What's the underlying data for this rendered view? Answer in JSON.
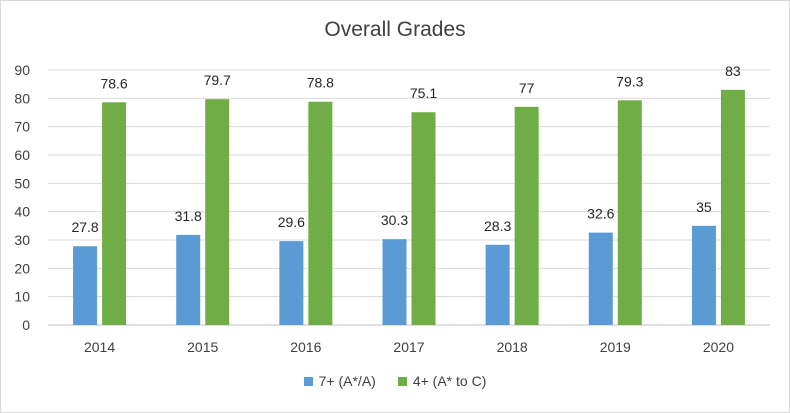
{
  "chart_data": {
    "type": "bar",
    "title": "Overall Grades",
    "categories": [
      "2014",
      "2015",
      "2016",
      "2017",
      "2018",
      "2019",
      "2020"
    ],
    "series": [
      {
        "name": "7+ (A*/A)",
        "color": "#5b9bd5",
        "values": [
          27.8,
          31.8,
          29.6,
          30.3,
          28.3,
          32.6,
          35
        ]
      },
      {
        "name": "4+ (A* to C)",
        "color": "#70ad47",
        "values": [
          78.6,
          79.7,
          78.8,
          75.1,
          77,
          79.3,
          83
        ]
      }
    ],
    "ylim": [
      0,
      90
    ],
    "yticks": [
      "0",
      "10",
      "20",
      "30",
      "40",
      "50",
      "60",
      "70",
      "80",
      "90"
    ],
    "grid": true,
    "legend_position": "bottom"
  }
}
